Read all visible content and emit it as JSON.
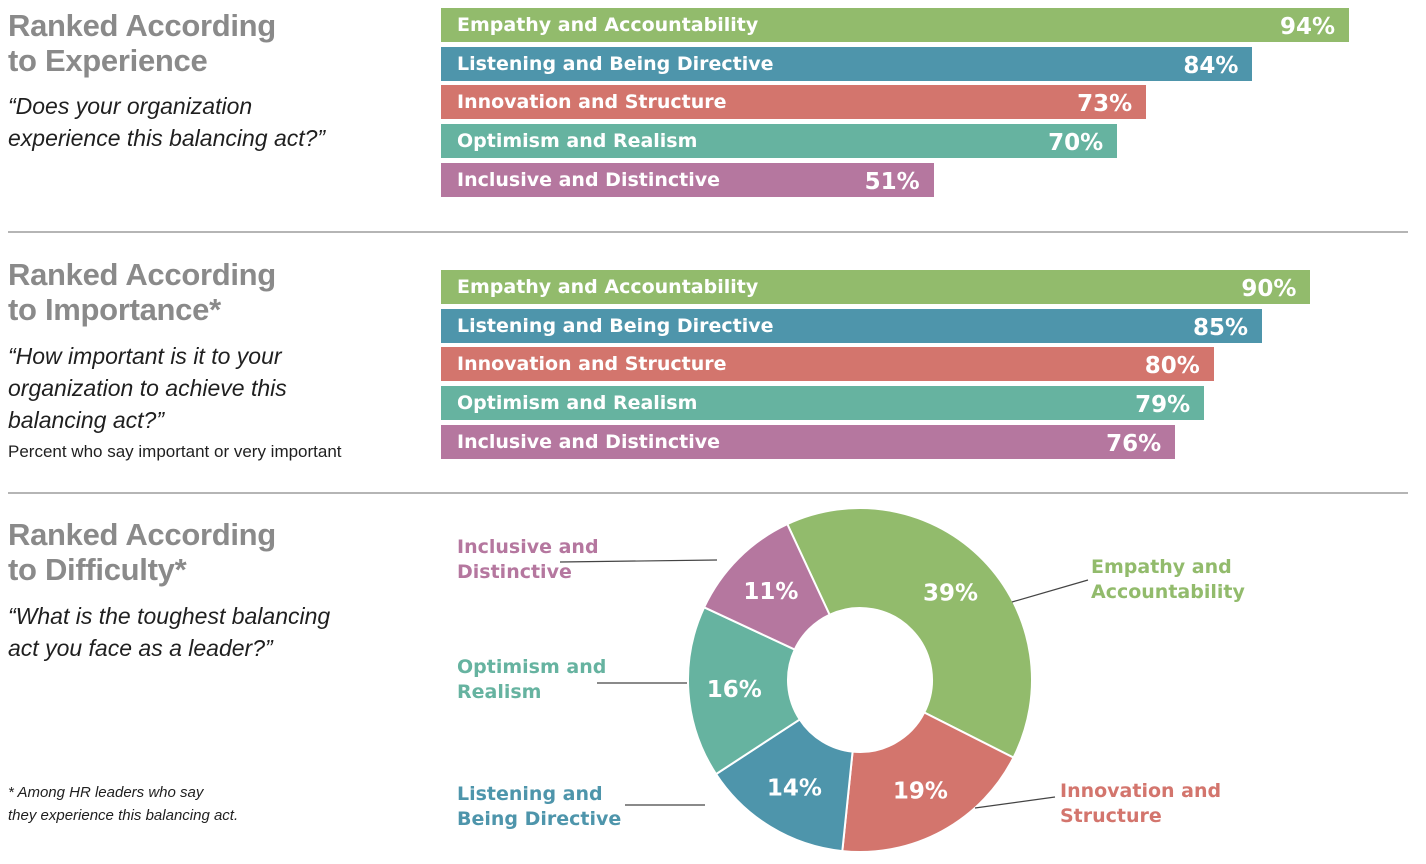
{
  "sections": [
    {
      "title_line1": "Ranked According",
      "title_line2": "to Experience",
      "question_line1": "“Does your organization",
      "question_line2": "experience this balancing act?”"
    },
    {
      "title_line1": "Ranked According",
      "title_line2": "to Importance*",
      "question_line1": "“How important is it to your",
      "question_line2": "organization to achieve this",
      "question_line3": "balancing act?”",
      "note": "Percent who say important or very important"
    },
    {
      "title_line1": "Ranked According",
      "title_line2": "to Difficulty*",
      "question_line1": "“What is the toughest balancing",
      "question_line2": "act you face as a leader?”"
    }
  ],
  "footnote_line1": "* Among HR leaders who say",
  "footnote_line2": "they experience this balancing act.",
  "colors": {
    "empathy": "#92bb6c",
    "listening": "#4e95ab",
    "innovation": "#d3756d",
    "optimism": "#66b3a0",
    "inclusive": "#b5779f",
    "divider": "#b5b5b5",
    "title_gray": "#8a8a8a"
  },
  "chart_data": [
    {
      "type": "bar",
      "orientation": "horizontal",
      "categories": [
        "Empathy and Accountability",
        "Listening and Being Directive",
        "Innovation and Structure",
        "Optimism and Realism",
        "Inclusive and Distinctive"
      ],
      "values": [
        94,
        84,
        73,
        70,
        51
      ],
      "value_labels": [
        "94%",
        "84%",
        "73%",
        "70%",
        "51%"
      ],
      "ylim": [
        0,
        100
      ]
    },
    {
      "type": "bar",
      "orientation": "horizontal",
      "categories": [
        "Empathy and Accountability",
        "Listening and Being Directive",
        "Innovation and Structure",
        "Optimism and Realism",
        "Inclusive and Distinctive"
      ],
      "values": [
        90,
        85,
        80,
        79,
        76
      ],
      "value_labels": [
        "90%",
        "85%",
        "80%",
        "79%",
        "76%"
      ],
      "ylim": [
        0,
        100
      ]
    },
    {
      "type": "pie",
      "style": "donut",
      "slices": [
        {
          "label_line1": "Empathy and",
          "label_line2": "Accountability",
          "value": 39,
          "value_label": "39%",
          "color": "#92bb6c"
        },
        {
          "label_line1": "Innovation and",
          "label_line2": "Structure",
          "value": 19,
          "value_label": "19%",
          "color": "#d3756d"
        },
        {
          "label_line1": "Listening and",
          "label_line2": "Being Directive",
          "value": 14,
          "value_label": "14%",
          "color": "#4e95ab"
        },
        {
          "label_line1": "Optimism and",
          "label_line2": "Realism",
          "value": 16,
          "value_label": "16%",
          "color": "#66b3a0"
        },
        {
          "label_line1": "Inclusive and",
          "label_line2": "Distinctive",
          "value": 11,
          "value_label": "11%",
          "color": "#b5779f"
        }
      ]
    }
  ]
}
